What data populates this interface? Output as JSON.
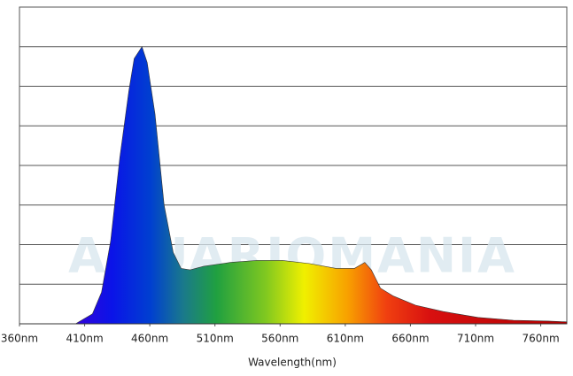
{
  "chart_data": {
    "type": "area",
    "watermark": "AQUARIOMANIA",
    "x_label": "Wavelength(nm)",
    "x": [
      403,
      416,
      423,
      430,
      437,
      444,
      448,
      454,
      458,
      464,
      471,
      478,
      484,
      491,
      501,
      522,
      542,
      562,
      583,
      603,
      617,
      625,
      630,
      637,
      647,
      664,
      685,
      712,
      739,
      766,
      780
    ],
    "values": [
      0,
      0.25,
      0.8,
      2.1,
      4.2,
      5.9,
      6.7,
      7.0,
      6.6,
      5.3,
      3.0,
      1.8,
      1.4,
      1.36,
      1.45,
      1.55,
      1.6,
      1.6,
      1.52,
      1.4,
      1.4,
      1.55,
      1.36,
      0.9,
      0.7,
      0.47,
      0.31,
      0.16,
      0.09,
      0.07,
      0.05
    ],
    "xlim": [
      360,
      780
    ],
    "ylim": [
      0,
      8
    ],
    "xticks": [
      {
        "value": 360,
        "label": "360nm"
      },
      {
        "value": 410,
        "label": "410nm"
      },
      {
        "value": 460,
        "label": "460nm"
      },
      {
        "value": 510,
        "label": "510nm"
      },
      {
        "value": 560,
        "label": "560nm"
      },
      {
        "value": 610,
        "label": "610nm"
      },
      {
        "value": 660,
        "label": "660nm"
      },
      {
        "value": 710,
        "label": "710nm"
      },
      {
        "value": 760,
        "label": "760nm"
      }
    ],
    "yticks": [
      1,
      2,
      3,
      4,
      5,
      6,
      7
    ],
    "grid": true
  }
}
